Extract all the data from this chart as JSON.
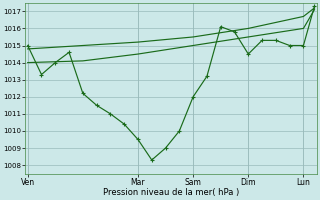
{
  "xlabel": "Pression niveau de la mer( hPa )",
  "bg_color": "#cce8e8",
  "line_color": "#1a6b1a",
  "grid_color": "#99bbbb",
  "xtick_labels": [
    "Ven",
    "Mar",
    "Sam",
    "Dim",
    "Lun"
  ],
  "xtick_positions": [
    0,
    4,
    6,
    8,
    10
  ],
  "xlim": [
    -0.1,
    10.5
  ],
  "ylim": [
    1007.5,
    1017.5
  ],
  "yticks": [
    1008,
    1009,
    1010,
    1011,
    1012,
    1013,
    1014,
    1015,
    1016,
    1017
  ],
  "series_dip_x": [
    0,
    0.5,
    1.0,
    1.5,
    2.0,
    2.5,
    3.0,
    3.5,
    4.0,
    4.5,
    5.0,
    5.5,
    6.0,
    6.5,
    7.0,
    7.5,
    8.0,
    8.5,
    9.0,
    9.5,
    10.0,
    10.4
  ],
  "series_dip_y": [
    1015.0,
    1013.3,
    1014.0,
    1014.6,
    1012.2,
    1011.5,
    1011.0,
    1010.4,
    1009.5,
    1008.3,
    1009.0,
    1010.0,
    1012.0,
    1013.2,
    1016.1,
    1015.8,
    1014.5,
    1015.3,
    1015.3,
    1015.0,
    1015.0,
    1017.3
  ],
  "series_flat_x": [
    0,
    2,
    4,
    6,
    8,
    10,
    10.4
  ],
  "series_flat_y": [
    1014.0,
    1014.1,
    1014.5,
    1015.0,
    1015.5,
    1016.0,
    1017.1
  ],
  "series_top_x": [
    0,
    2,
    4,
    6,
    8,
    10,
    10.4
  ],
  "series_top_y": [
    1014.8,
    1015.0,
    1015.2,
    1015.5,
    1016.0,
    1016.7,
    1017.2
  ]
}
